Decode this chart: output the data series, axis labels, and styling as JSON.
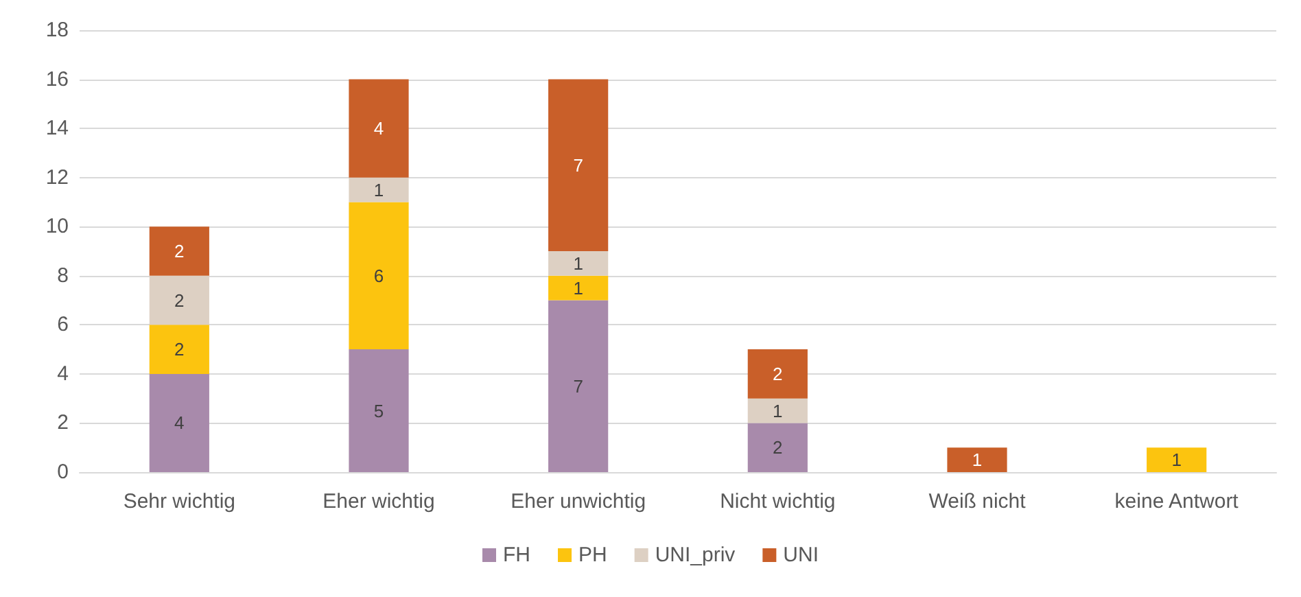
{
  "chart_data": {
    "type": "bar",
    "stacked": true,
    "categories": [
      "Sehr wichtig",
      "Eher wichtig",
      "Eher unwichtig",
      "Nicht wichtig",
      "Weiß nicht",
      "keine Antwort"
    ],
    "series": [
      {
        "name": "FH",
        "color": "#a88aab",
        "values": [
          4,
          5,
          7,
          2,
          null,
          null
        ]
      },
      {
        "name": "PH",
        "color": "#fcc40f",
        "values": [
          2,
          6,
          1,
          null,
          null,
          1
        ]
      },
      {
        "name": "UNI_priv",
        "color": "#ddd0c3",
        "values": [
          2,
          1,
          1,
          1,
          null,
          null
        ]
      },
      {
        "name": "UNI",
        "color": "#c95f29",
        "values": [
          2,
          4,
          7,
          2,
          1,
          null
        ]
      }
    ],
    "ylim": [
      0,
      18
    ],
    "yticks": [
      0,
      2,
      4,
      6,
      8,
      10,
      12,
      14,
      16,
      18
    ],
    "grid": "y",
    "legend": "bottom",
    "data_labels": true
  }
}
